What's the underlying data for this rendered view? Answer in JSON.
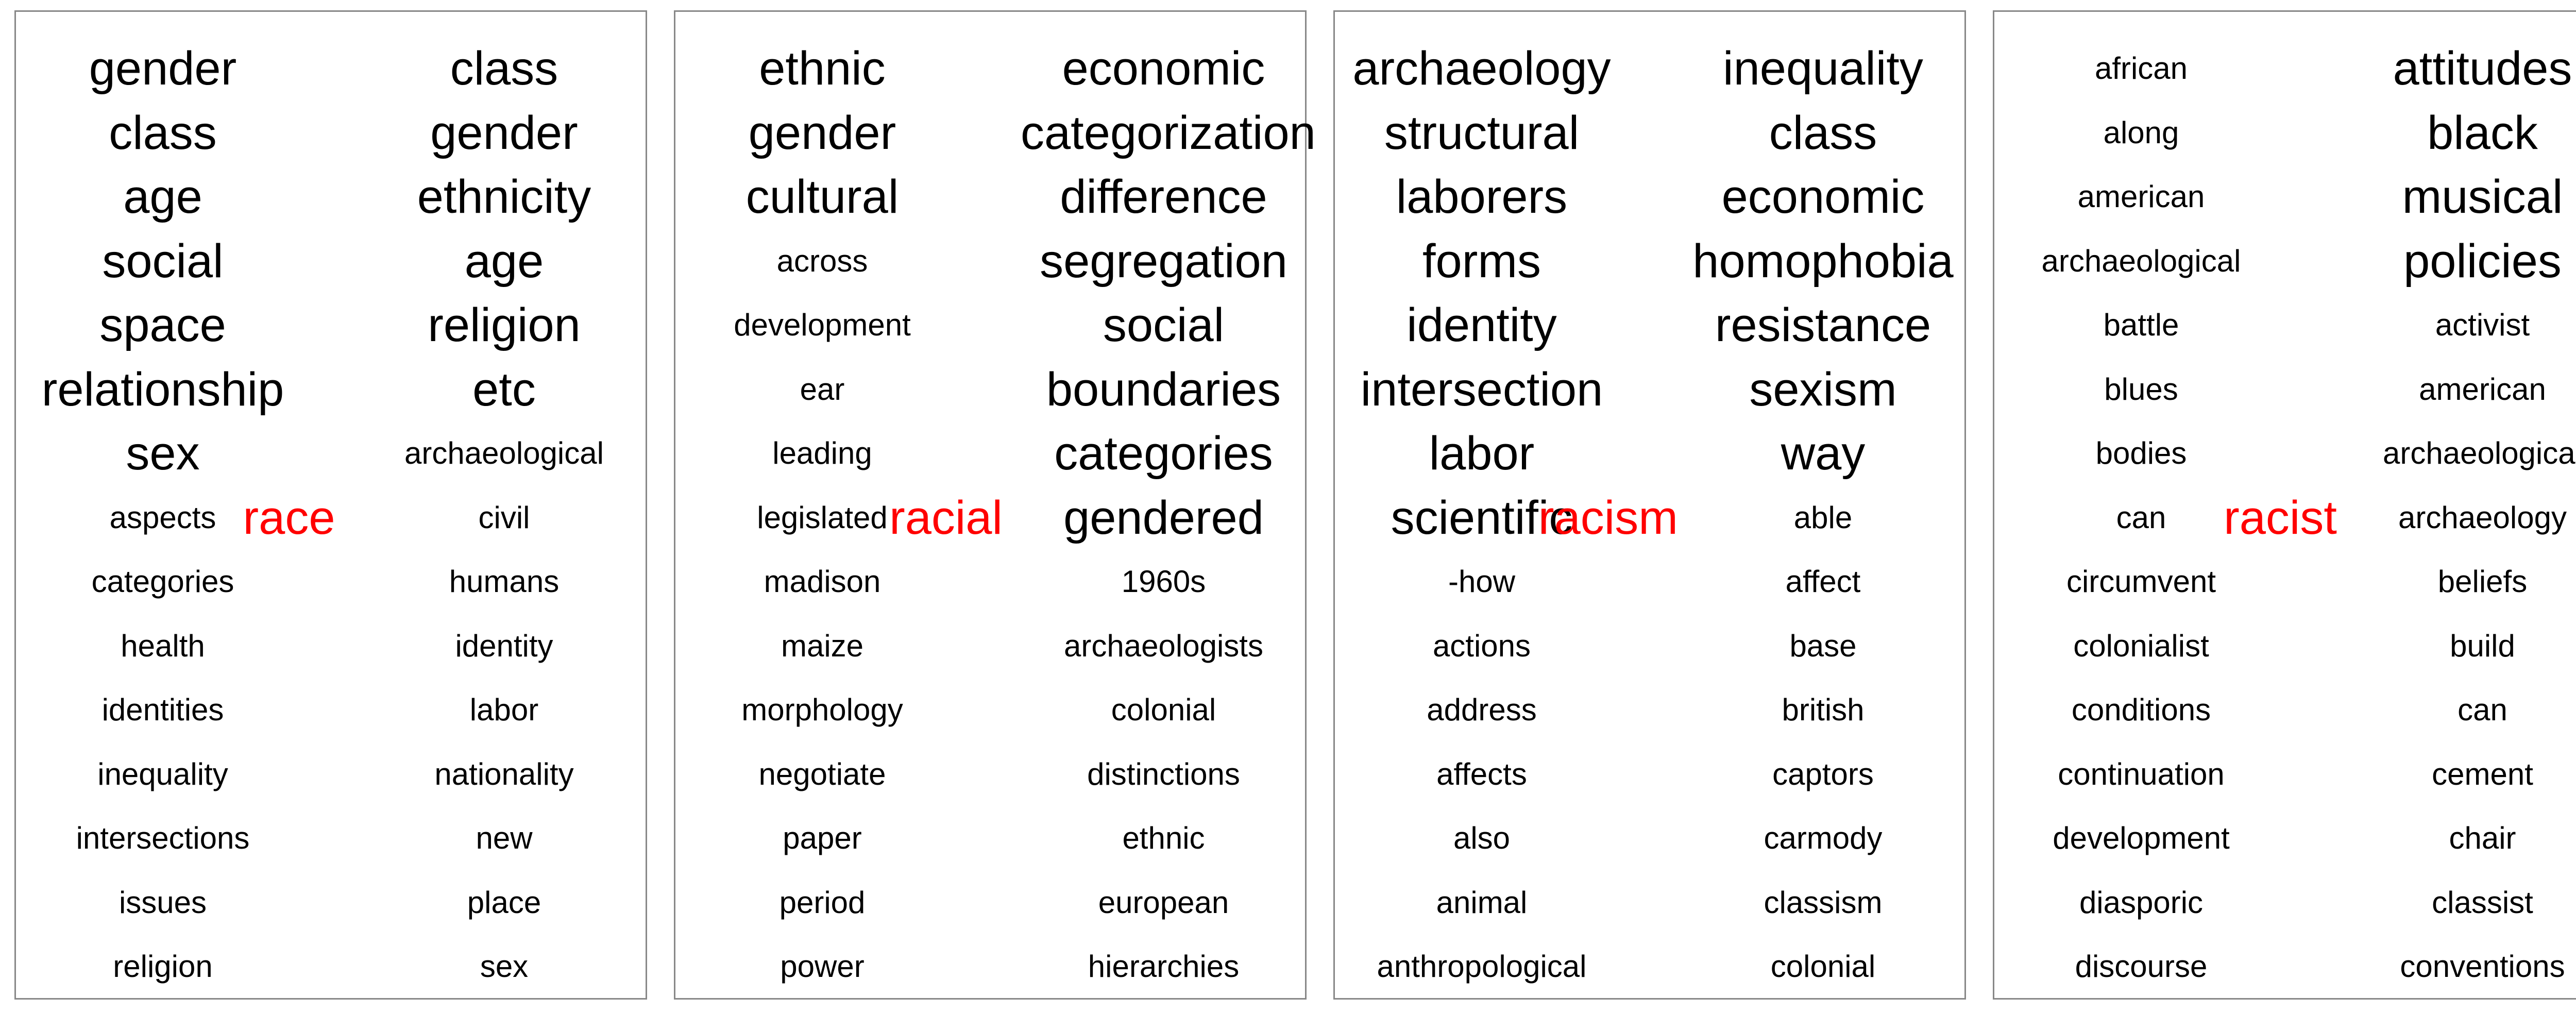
{
  "accent_color": "#ff0000",
  "panels": [
    {
      "center": "race",
      "left": [
        {
          "text": "gender",
          "big": true
        },
        {
          "text": "class",
          "big": true
        },
        {
          "text": "age",
          "big": true
        },
        {
          "text": "social",
          "big": true
        },
        {
          "text": "space",
          "big": true
        },
        {
          "text": "relationship",
          "big": true
        },
        {
          "text": "sex",
          "big": true
        },
        {
          "text": "aspects",
          "big": false
        },
        {
          "text": "categories",
          "big": false
        },
        {
          "text": "health",
          "big": false
        },
        {
          "text": "identities",
          "big": false
        },
        {
          "text": "inequality",
          "big": false
        },
        {
          "text": "intersections",
          "big": false
        },
        {
          "text": "issues",
          "big": false
        },
        {
          "text": "religion",
          "big": false
        }
      ],
      "right": [
        {
          "text": "class",
          "big": true
        },
        {
          "text": "gender",
          "big": true
        },
        {
          "text": "ethnicity",
          "big": true
        },
        {
          "text": "age",
          "big": true
        },
        {
          "text": "religion",
          "big": true
        },
        {
          "text": "etc",
          "big": true
        },
        {
          "text": "archaeological",
          "big": false
        },
        {
          "text": "civil",
          "big": false
        },
        {
          "text": "humans",
          "big": false
        },
        {
          "text": "identity",
          "big": false
        },
        {
          "text": "labor",
          "big": false
        },
        {
          "text": "nationality",
          "big": false
        },
        {
          "text": "new",
          "big": false
        },
        {
          "text": "place",
          "big": false
        },
        {
          "text": "sex",
          "big": false
        }
      ]
    },
    {
      "center": "racial",
      "left": [
        {
          "text": "ethnic",
          "big": true
        },
        {
          "text": "gender",
          "big": true
        },
        {
          "text": "cultural",
          "big": true
        },
        {
          "text": "across",
          "big": false
        },
        {
          "text": "development",
          "big": false
        },
        {
          "text": "ear",
          "big": false
        },
        {
          "text": "leading",
          "big": false
        },
        {
          "text": "legislated",
          "big": false
        },
        {
          "text": "madison",
          "big": false
        },
        {
          "text": "maize",
          "big": false
        },
        {
          "text": "morphology",
          "big": false
        },
        {
          "text": "negotiate",
          "big": false
        },
        {
          "text": "paper",
          "big": false
        },
        {
          "text": "period",
          "big": false
        },
        {
          "text": "power",
          "big": false
        }
      ],
      "right": [
        {
          "text": "economic",
          "big": true
        },
        {
          "text": "categorization",
          "big": true
        },
        {
          "text": "difference",
          "big": true
        },
        {
          "text": "segregation",
          "big": true
        },
        {
          "text": "social",
          "big": true
        },
        {
          "text": "boundaries",
          "big": true
        },
        {
          "text": "categories",
          "big": true
        },
        {
          "text": "gendered",
          "big": true
        },
        {
          "text": "1960s",
          "big": false
        },
        {
          "text": "archaeologists",
          "big": false
        },
        {
          "text": "colonial",
          "big": false
        },
        {
          "text": "distinctions",
          "big": false
        },
        {
          "text": "ethnic",
          "big": false
        },
        {
          "text": "european",
          "big": false
        },
        {
          "text": "hierarchies",
          "big": false
        }
      ]
    },
    {
      "center": "racism",
      "left": [
        {
          "text": "archaeology",
          "big": true
        },
        {
          "text": "structural",
          "big": true
        },
        {
          "text": "laborers",
          "big": true
        },
        {
          "text": "forms",
          "big": true
        },
        {
          "text": "identity",
          "big": true
        },
        {
          "text": "intersection",
          "big": true
        },
        {
          "text": "labor",
          "big": true
        },
        {
          "text": "scientific",
          "big": true
        },
        {
          "text": "-how",
          "big": false
        },
        {
          "text": "actions",
          "big": false
        },
        {
          "text": "address",
          "big": false
        },
        {
          "text": "affects",
          "big": false
        },
        {
          "text": "also",
          "big": false
        },
        {
          "text": "animal",
          "big": false
        },
        {
          "text": "anthropological",
          "big": false
        }
      ],
      "right": [
        {
          "text": "inequality",
          "big": true
        },
        {
          "text": "class",
          "big": true
        },
        {
          "text": "economic",
          "big": true
        },
        {
          "text": "homophobia",
          "big": true
        },
        {
          "text": "resistance",
          "big": true
        },
        {
          "text": "sexism",
          "big": true
        },
        {
          "text": "way",
          "big": true
        },
        {
          "text": "able",
          "big": false
        },
        {
          "text": "affect",
          "big": false
        },
        {
          "text": "base",
          "big": false
        },
        {
          "text": "british",
          "big": false
        },
        {
          "text": "captors",
          "big": false
        },
        {
          "text": "carmody",
          "big": false
        },
        {
          "text": "classism",
          "big": false
        },
        {
          "text": "colonial",
          "big": false
        }
      ]
    },
    {
      "center": "racist",
      "left": [
        {
          "text": "african",
          "big": false
        },
        {
          "text": "along",
          "big": false
        },
        {
          "text": "american",
          "big": false
        },
        {
          "text": "archaeological",
          "big": false
        },
        {
          "text": "battle",
          "big": false
        },
        {
          "text": "blues",
          "big": false
        },
        {
          "text": "bodies",
          "big": false
        },
        {
          "text": "can",
          "big": false
        },
        {
          "text": "circumvent",
          "big": false
        },
        {
          "text": "colonialist",
          "big": false
        },
        {
          "text": "conditions",
          "big": false
        },
        {
          "text": "continuation",
          "big": false
        },
        {
          "text": "development",
          "big": false
        },
        {
          "text": "diasporic",
          "big": false
        },
        {
          "text": "discourse",
          "big": false
        }
      ],
      "right": [
        {
          "text": "attitudes",
          "big": true
        },
        {
          "text": "black",
          "big": true
        },
        {
          "text": "musical",
          "big": true
        },
        {
          "text": "policies",
          "big": true
        },
        {
          "text": "activist",
          "big": false
        },
        {
          "text": "american",
          "big": false
        },
        {
          "text": "archaeological",
          "big": false
        },
        {
          "text": "archaeology",
          "big": false
        },
        {
          "text": "beliefs",
          "big": false
        },
        {
          "text": "build",
          "big": false
        },
        {
          "text": "can",
          "big": false
        },
        {
          "text": "cement",
          "big": false
        },
        {
          "text": "chair",
          "big": false
        },
        {
          "text": "classist",
          "big": false
        },
        {
          "text": "conventions",
          "big": false
        }
      ]
    }
  ]
}
